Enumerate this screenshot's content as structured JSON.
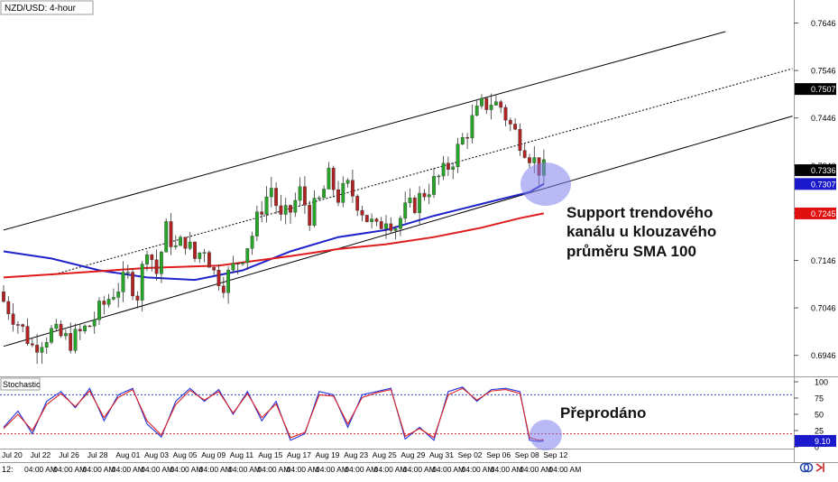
{
  "instrument": "NZD/USD: 4-hour",
  "indicator_label": "Stochastic",
  "annotations": {
    "support_lines": [
      "Support trendového",
      "kanálu u klouzavého",
      "průměru SMA 100"
    ],
    "oversold": "Přeprodáno"
  },
  "footer": {
    "left": "12:",
    "bottom_ticks": [
      "04:00 AM",
      "04:00 AM",
      "04:00 AM",
      "04:00 AM",
      "04:00 AM",
      "04:00 AM",
      "04:00 AM",
      "04:00 AM",
      "04:00 AM",
      "04:00 AM",
      "04:00 AM",
      "04:00 AM",
      "04:00 AM",
      "04:00 AM",
      "04:00 AM",
      "04:00 AM",
      "04:00 AM",
      "04:00 AM",
      "04:00 AM"
    ]
  },
  "colors": {
    "up_candle": "#26a626",
    "down_candle": "#b22222",
    "sma100": "#1e22c8",
    "sma200": "#e01b1b",
    "stoch_k": "#2233dd",
    "stoch_d": "#dd2222",
    "circle": "#8080ee",
    "badge_dark": "#000000",
    "badge_blue": "#1a1acc",
    "badge_red": "#e01010"
  },
  "chart_data": [
    {
      "type": "candlestick",
      "title": "NZD/USD: 4-hour",
      "x_labels": [
        "Jul 20",
        "Jul 22",
        "Jul 26",
        "Jul 28",
        "Aug 01",
        "Aug 03",
        "Aug 05",
        "Aug 09",
        "Aug 11",
        "Aug 15",
        "Aug 17",
        "Aug 19",
        "Aug 23",
        "Aug 25",
        "Aug 29",
        "Aug 31",
        "Sep 02",
        "Sep 06",
        "Sep 08",
        "Sep 12"
      ],
      "y_ticks": [
        0.7646,
        0.7546,
        0.7446,
        0.7346,
        0.7246,
        0.7146,
        0.7046,
        0.6946
      ],
      "ylim": [
        0.6915,
        0.7685
      ],
      "price_badges": [
        {
          "value": "0.7507",
          "style": "dark"
        },
        {
          "value": "0.7336",
          "style": "dark"
        },
        {
          "value": "0.7307",
          "style": "blue"
        },
        {
          "value": "0.7245",
          "style": "red"
        }
      ],
      "close_path": [
        [
          0,
          0.706
        ],
        [
          4,
          0.7
        ],
        [
          6,
          0.6965
        ],
        [
          10,
          0.6995
        ],
        [
          14,
          0.6975
        ],
        [
          18,
          0.701
        ],
        [
          20,
          0.704
        ],
        [
          23,
          0.708
        ],
        [
          26,
          0.711
        ],
        [
          28,
          0.7075
        ],
        [
          30,
          0.718
        ],
        [
          32,
          0.712
        ],
        [
          34,
          0.721
        ],
        [
          36,
          0.717
        ],
        [
          38,
          0.719
        ],
        [
          40,
          0.715
        ],
        [
          42,
          0.7175
        ],
        [
          44,
          0.712
        ],
        [
          46,
          0.71
        ],
        [
          48,
          0.713
        ],
        [
          50,
          0.716
        ],
        [
          52,
          0.72
        ],
        [
          54,
          0.726
        ],
        [
          56,
          0.73
        ],
        [
          58,
          0.723
        ],
        [
          60,
          0.725
        ],
        [
          62,
          0.729
        ],
        [
          64,
          0.724
        ],
        [
          66,
          0.727
        ],
        [
          68,
          0.732
        ],
        [
          70,
          0.728
        ],
        [
          72,
          0.73
        ],
        [
          74,
          0.727
        ],
        [
          76,
          0.7235
        ],
        [
          78,
          0.721
        ],
        [
          80,
          0.724
        ],
        [
          82,
          0.722
        ],
        [
          84,
          0.725
        ],
        [
          86,
          0.7265
        ],
        [
          88,
          0.729
        ],
        [
          90,
          0.731
        ],
        [
          92,
          0.733
        ],
        [
          94,
          0.736
        ],
        [
          96,
          0.74
        ],
        [
          98,
          0.744
        ],
        [
          100,
          0.747
        ],
        [
          102,
          0.748
        ],
        [
          104,
          0.747
        ],
        [
          106,
          0.743
        ],
        [
          108,
          0.74
        ],
        [
          110,
          0.737
        ],
        [
          112,
          0.734
        ],
        [
          113,
          0.7336
        ]
      ],
      "channel": {
        "upper": [
          [
            0,
            0.721
          ],
          [
            151,
            0.7628
          ]
        ],
        "middle": [
          [
            10,
            0.7115
          ],
          [
            165,
            0.755
          ]
        ],
        "lower": [
          [
            0,
            0.6965
          ],
          [
            165,
            0.745
          ]
        ]
      },
      "series": [
        {
          "name": "SMA 100",
          "values": [
            [
              0,
              0.7165
            ],
            [
              10,
              0.715
            ],
            [
              20,
              0.7125
            ],
            [
              30,
              0.711
            ],
            [
              40,
              0.7105
            ],
            [
              50,
              0.7125
            ],
            [
              60,
              0.7165
            ],
            [
              70,
              0.7195
            ],
            [
              80,
              0.721
            ],
            [
              90,
              0.724
            ],
            [
              100,
              0.7265
            ],
            [
              110,
              0.729
            ],
            [
              113,
              0.7307
            ]
          ]
        },
        {
          "name": "SMA 200",
          "values": [
            [
              0,
              0.711
            ],
            [
              15,
              0.712
            ],
            [
              30,
              0.713
            ],
            [
              45,
              0.7135
            ],
            [
              60,
              0.7155
            ],
            [
              70,
              0.717
            ],
            [
              80,
              0.718
            ],
            [
              90,
              0.7195
            ],
            [
              100,
              0.7215
            ],
            [
              108,
              0.7235
            ],
            [
              113,
              0.7245
            ]
          ]
        }
      ]
    },
    {
      "type": "line",
      "title": "Stochastic",
      "y_ticks": [
        100,
        75,
        50,
        25,
        0
      ],
      "ylim": [
        0,
        100
      ],
      "levels": [
        80,
        20
      ],
      "current_value": "9.10",
      "series": [
        {
          "name": "%K",
          "values": [
            [
              0,
              30
            ],
            [
              3,
              55
            ],
            [
              6,
              20
            ],
            [
              9,
              70
            ],
            [
              12,
              85
            ],
            [
              15,
              60
            ],
            [
              18,
              90
            ],
            [
              21,
              40
            ],
            [
              24,
              80
            ],
            [
              27,
              90
            ],
            [
              30,
              35
            ],
            [
              33,
              15
            ],
            [
              36,
              70
            ],
            [
              39,
              90
            ],
            [
              42,
              70
            ],
            [
              45,
              88
            ],
            [
              48,
              50
            ],
            [
              51,
              85
            ],
            [
              54,
              40
            ],
            [
              57,
              70
            ],
            [
              60,
              10
            ],
            [
              63,
              20
            ],
            [
              66,
              85
            ],
            [
              69,
              80
            ],
            [
              72,
              30
            ],
            [
              75,
              80
            ],
            [
              78,
              85
            ],
            [
              81,
              90
            ],
            [
              84,
              12
            ],
            [
              87,
              30
            ],
            [
              90,
              10
            ],
            [
              93,
              85
            ],
            [
              96,
              92
            ],
            [
              99,
              70
            ],
            [
              102,
              88
            ],
            [
              105,
              90
            ],
            [
              108,
              85
            ],
            [
              110,
              10
            ],
            [
              112,
              8
            ],
            [
              113,
              9.1
            ]
          ]
        },
        {
          "name": "%D",
          "values": [
            [
              0,
              28
            ],
            [
              3,
              50
            ],
            [
              6,
              25
            ],
            [
              9,
              65
            ],
            [
              12,
              82
            ],
            [
              15,
              62
            ],
            [
              18,
              86
            ],
            [
              21,
              45
            ],
            [
              24,
              76
            ],
            [
              27,
              88
            ],
            [
              30,
              40
            ],
            [
              33,
              18
            ],
            [
              36,
              65
            ],
            [
              39,
              87
            ],
            [
              42,
              72
            ],
            [
              45,
              85
            ],
            [
              48,
              52
            ],
            [
              51,
              82
            ],
            [
              54,
              45
            ],
            [
              57,
              66
            ],
            [
              60,
              14
            ],
            [
              63,
              22
            ],
            [
              66,
              80
            ],
            [
              69,
              78
            ],
            [
              72,
              35
            ],
            [
              75,
              76
            ],
            [
              78,
              83
            ],
            [
              81,
              88
            ],
            [
              84,
              16
            ],
            [
              87,
              28
            ],
            [
              90,
              14
            ],
            [
              93,
              80
            ],
            [
              96,
              90
            ],
            [
              99,
              72
            ],
            [
              102,
              86
            ],
            [
              105,
              88
            ],
            [
              108,
              82
            ],
            [
              110,
              14
            ],
            [
              112,
              10
            ],
            [
              113,
              11
            ]
          ]
        }
      ]
    }
  ]
}
